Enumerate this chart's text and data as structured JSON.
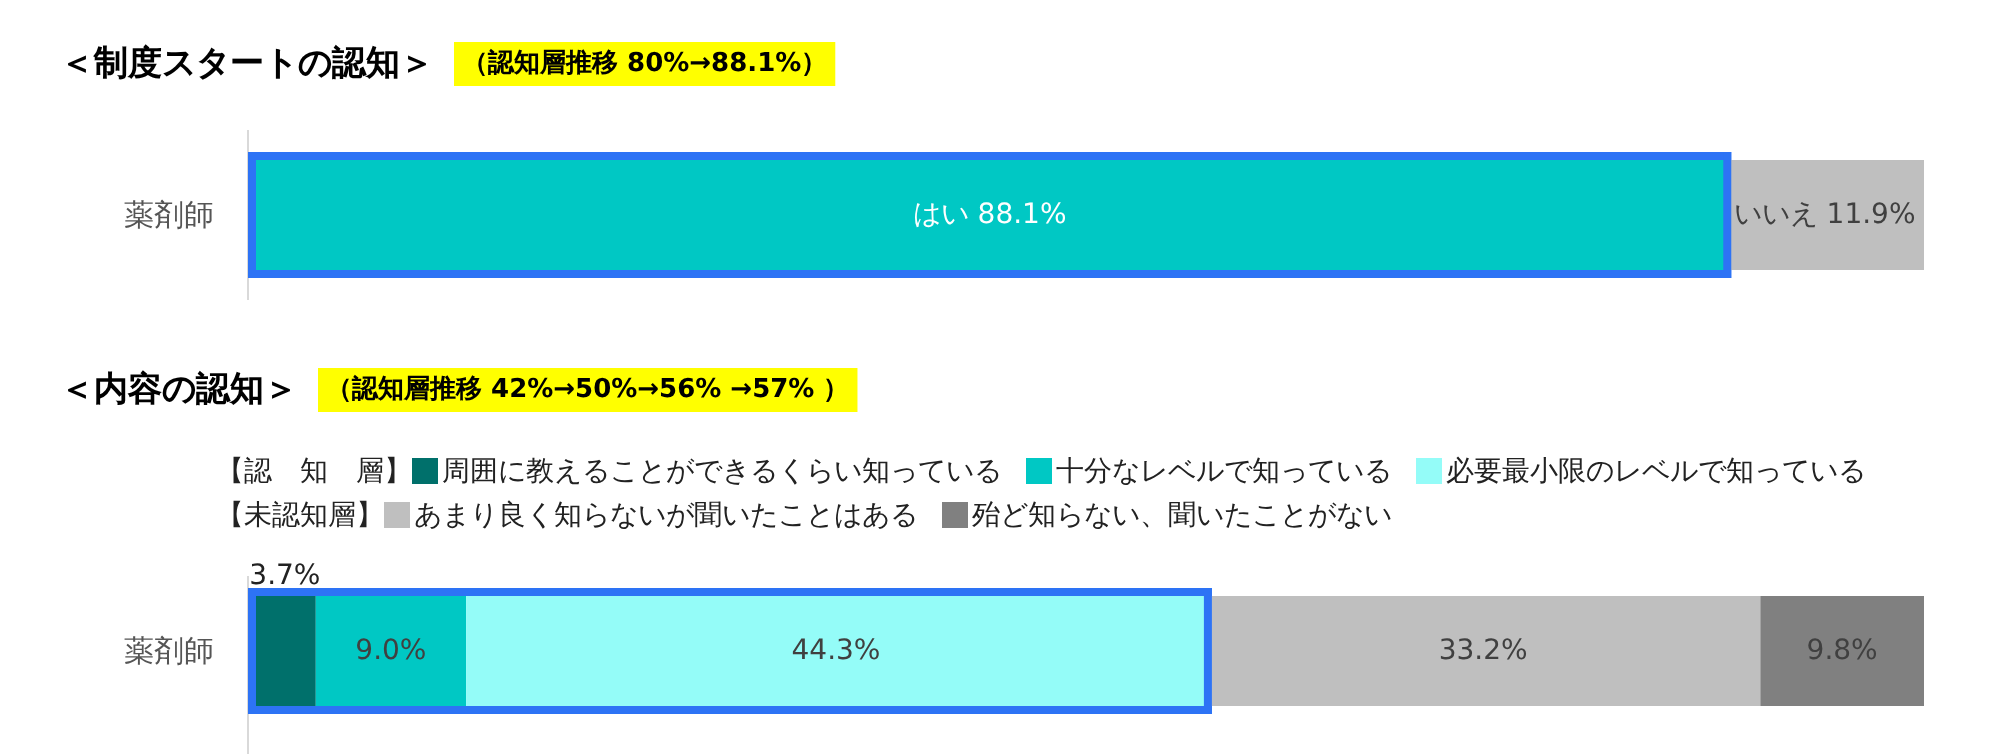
{
  "chart_data": [
    {
      "type": "bar",
      "orientation": "horizontal",
      "stacked": true,
      "title": "＜制度スタートの認知＞",
      "subtitle": "（認知層推移 80%→88.1%）",
      "categories": [
        "薬剤師"
      ],
      "xlim": [
        0,
        100
      ],
      "legend": false,
      "series": [
        {
          "color": "#00c8c4",
          "values": [
            88.1
          ],
          "value_labels": [
            "はい 88.1%"
          ]
        },
        {
          "color": "#bfbfbf",
          "values": [
            11.9
          ],
          "value_labels": [
            "いいえ 11.9%"
          ]
        }
      ]
    },
    {
      "type": "bar",
      "orientation": "horizontal",
      "stacked": true,
      "title": "＜内容の認知＞",
      "subtitle": "（認知層推移 42%→50%→56% →57% ）",
      "categories": [
        "薬剤師"
      ],
      "xlim": [
        0,
        100
      ],
      "legend": "top left",
      "annotations": [
        "【認　知　層】",
        "【未認知層】"
      ],
      "series": [
        {
          "name": "周囲に教えることができるくらい知っている",
          "color": "#00706b",
          "values": [
            3.7
          ],
          "value_labels": [
            "3.7%"
          ]
        },
        {
          "name": "十分なレベルで知っている",
          "color": "#00c8c4",
          "values": [
            9.0
          ],
          "value_labels": [
            "9.0%"
          ]
        },
        {
          "name": "必要最小限のレベルで知っている",
          "color": "#94fcf8",
          "values": [
            44.3
          ],
          "value_labels": [
            "44.3%"
          ]
        },
        {
          "name": "あまり良く知らないが聞いたことはある",
          "color": "#bfbfbf",
          "values": [
            33.2
          ],
          "value_labels": [
            "33.2%"
          ]
        },
        {
          "name": "殆ど知らない、聞いたことがない",
          "color": "#808080",
          "values": [
            9.8
          ],
          "value_labels": [
            "9.8%"
          ]
        }
      ]
    }
  ]
}
